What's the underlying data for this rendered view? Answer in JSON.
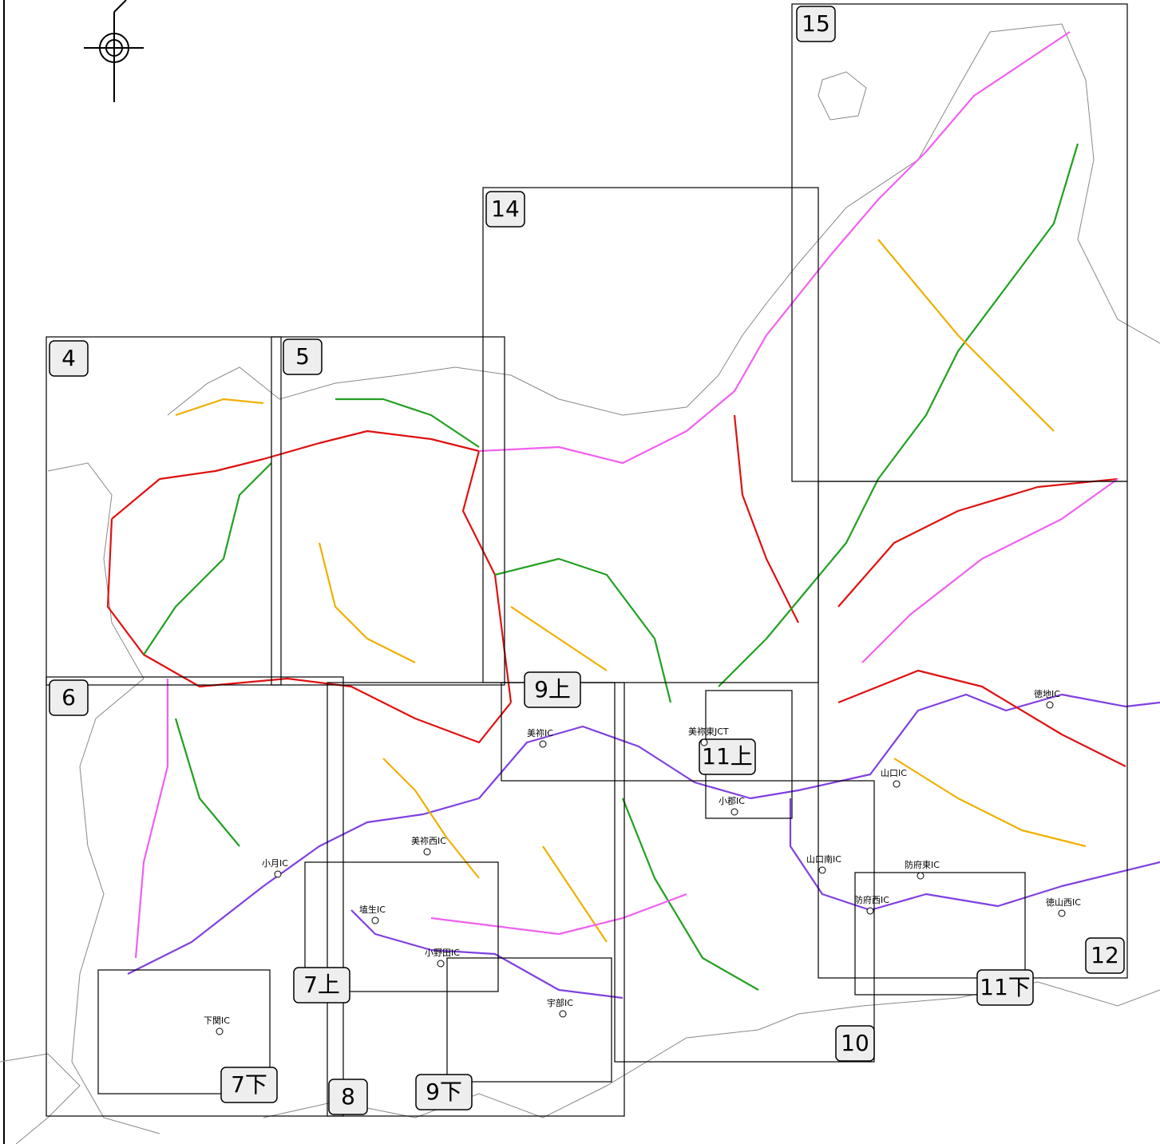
{
  "sheets": [
    "15",
    "14",
    "4",
    "5",
    "6",
    "7上",
    "7下",
    "8",
    "9上",
    "9下",
    "10",
    "11上",
    "11下",
    "12"
  ],
  "interchanges": [
    "美祢IC",
    "美祢東JCT",
    "美祢西IC",
    "小月IC",
    "埴生IC",
    "小野田IC",
    "宇部IC",
    "小郡IC",
    "山口IC",
    "山口南IC",
    "防府東IC",
    "防府西IC",
    "徳地IC",
    "徳山西IC",
    "下関IC"
  ]
}
